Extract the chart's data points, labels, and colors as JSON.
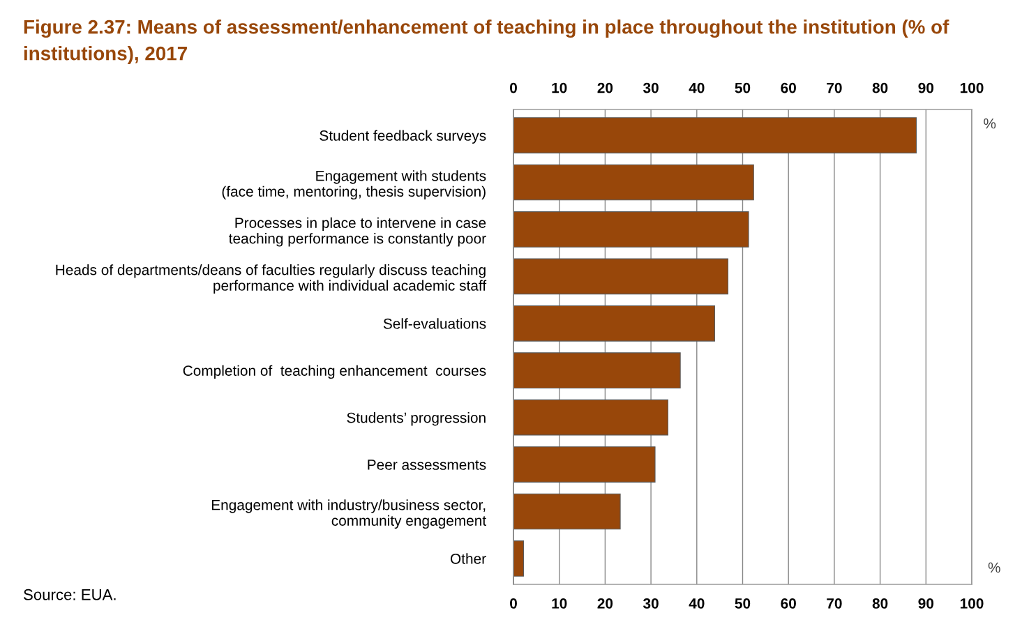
{
  "chart_data": {
    "type": "bar",
    "orientation": "horizontal",
    "title": "Figure 2.37: Means of assessment/enhancement of teaching in place throughout the institution (% of institutions), 2017",
    "categories": [
      "Student feedback surveys",
      "Engagement with students\n(face time, mentoring, thesis supervision)",
      "Processes in place to intervene in case\nteaching performance is constantly poor",
      "Heads of departments/deans of faculties regularly discuss teaching\nperformance with individual academic staff",
      "Self-evaluations",
      "Completion of  teaching enhancement  courses",
      "Students’ progression",
      "Peer assessments",
      "Engagement with industry/business sector,\ncommunity engagement",
      "Other"
    ],
    "values": [
      87.9,
      52.4,
      51.3,
      46.8,
      43.9,
      36.4,
      33.7,
      30.9,
      23.3,
      2.2
    ],
    "color": "#98470a",
    "xlim": [
      0,
      100
    ],
    "xticks": [
      0,
      10,
      20,
      30,
      40,
      50,
      60,
      70,
      80,
      90,
      100
    ],
    "xlabel": "%",
    "x2lim": [
      0,
      100
    ],
    "x2ticks": [
      0,
      10,
      20,
      30,
      40,
      50,
      60,
      70,
      80,
      90,
      100
    ],
    "x2label": "%",
    "grid": "x",
    "legend": false,
    "annotations": [
      "Source: EUA."
    ]
  }
}
